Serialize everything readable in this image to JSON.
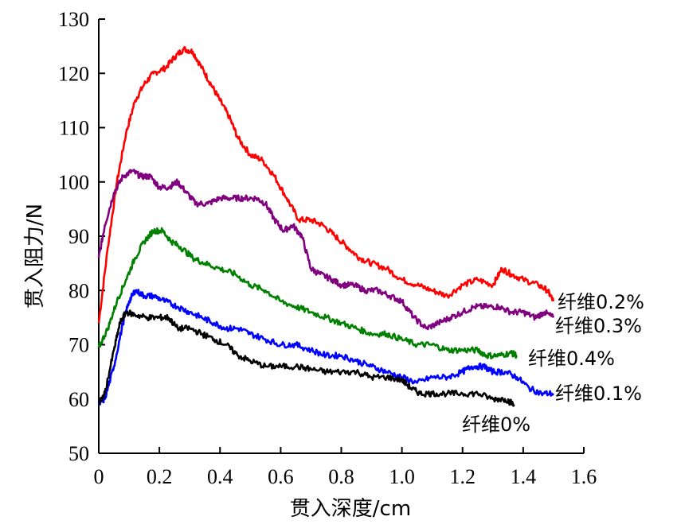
{
  "chart_data": {
    "type": "line",
    "xlabel": "贯入深度/cm",
    "ylabel": "贯入阻力/N",
    "xlim": [
      0,
      1.6
    ],
    "ylim": [
      50,
      130
    ],
    "xticks": [
      "0",
      "0.2",
      "0.4",
      "0.6",
      "0.8",
      "1.0",
      "1.2",
      "1.4",
      "1.6"
    ],
    "yticks": [
      "50",
      "60",
      "70",
      "80",
      "90",
      "100",
      "110",
      "120",
      "130"
    ],
    "grid": false,
    "legend": "inline labels at line ends",
    "series": [
      {
        "name": "纤维0.2%",
        "color": "#ff0000",
        "points": [
          [
            0,
            74
          ],
          [
            0.03,
            88
          ],
          [
            0.06,
            100
          ],
          [
            0.09,
            109
          ],
          [
            0.12,
            115
          ],
          [
            0.15,
            118
          ],
          [
            0.18,
            120
          ],
          [
            0.22,
            121
          ],
          [
            0.25,
            123
          ],
          [
            0.28,
            124.5
          ],
          [
            0.31,
            124
          ],
          [
            0.34,
            121
          ],
          [
            0.37,
            118
          ],
          [
            0.4,
            115
          ],
          [
            0.43,
            112
          ],
          [
            0.46,
            108
          ],
          [
            0.5,
            105
          ],
          [
            0.54,
            104
          ],
          [
            0.58,
            101
          ],
          [
            0.62,
            97
          ],
          [
            0.66,
            93
          ],
          [
            0.7,
            93
          ],
          [
            0.74,
            92
          ],
          [
            0.78,
            90
          ],
          [
            0.82,
            88
          ],
          [
            0.86,
            86
          ],
          [
            0.9,
            85
          ],
          [
            0.95,
            84
          ],
          [
            1.0,
            82
          ],
          [
            1.05,
            81
          ],
          [
            1.1,
            80
          ],
          [
            1.15,
            79
          ],
          [
            1.2,
            81
          ],
          [
            1.25,
            82
          ],
          [
            1.3,
            81
          ],
          [
            1.33,
            84
          ],
          [
            1.36,
            83
          ],
          [
            1.4,
            82
          ],
          [
            1.45,
            81
          ],
          [
            1.48,
            80
          ],
          [
            1.5,
            78
          ]
        ]
      },
      {
        "name": "纤维0.3%",
        "color": "#800080",
        "points": [
          [
            0,
            86
          ],
          [
            0.02,
            92
          ],
          [
            0.05,
            98
          ],
          [
            0.08,
            101
          ],
          [
            0.11,
            102
          ],
          [
            0.14,
            101
          ],
          [
            0.17,
            101
          ],
          [
            0.2,
            99
          ],
          [
            0.23,
            99
          ],
          [
            0.26,
            100
          ],
          [
            0.29,
            98
          ],
          [
            0.32,
            96
          ],
          [
            0.36,
            96
          ],
          [
            0.4,
            97
          ],
          [
            0.44,
            97
          ],
          [
            0.48,
            97
          ],
          [
            0.52,
            97
          ],
          [
            0.55,
            96
          ],
          [
            0.58,
            93
          ],
          [
            0.61,
            91
          ],
          [
            0.64,
            92
          ],
          [
            0.67,
            90
          ],
          [
            0.7,
            84
          ],
          [
            0.73,
            83
          ],
          [
            0.77,
            82
          ],
          [
            0.8,
            81
          ],
          [
            0.84,
            81
          ],
          [
            0.88,
            80
          ],
          [
            0.92,
            80
          ],
          [
            0.96,
            79
          ],
          [
            1.0,
            78
          ],
          [
            1.04,
            75
          ],
          [
            1.08,
            73
          ],
          [
            1.12,
            74
          ],
          [
            1.16,
            75
          ],
          [
            1.2,
            76
          ],
          [
            1.24,
            77
          ],
          [
            1.28,
            77
          ],
          [
            1.32,
            77
          ],
          [
            1.36,
            76
          ],
          [
            1.4,
            76
          ],
          [
            1.44,
            75
          ],
          [
            1.47,
            76
          ],
          [
            1.5,
            75
          ]
        ]
      },
      {
        "name": "纤维0.4%",
        "color": "#008000",
        "points": [
          [
            0,
            69.5
          ],
          [
            0.03,
            73
          ],
          [
            0.06,
            78
          ],
          [
            0.09,
            82
          ],
          [
            0.12,
            86
          ],
          [
            0.15,
            89
          ],
          [
            0.18,
            91
          ],
          [
            0.21,
            91
          ],
          [
            0.24,
            89
          ],
          [
            0.27,
            88
          ],
          [
            0.31,
            86
          ],
          [
            0.35,
            85
          ],
          [
            0.4,
            84
          ],
          [
            0.45,
            83
          ],
          [
            0.5,
            81
          ],
          [
            0.55,
            80
          ],
          [
            0.6,
            78
          ],
          [
            0.65,
            77
          ],
          [
            0.7,
            76
          ],
          [
            0.75,
            75
          ],
          [
            0.8,
            74
          ],
          [
            0.85,
            73
          ],
          [
            0.9,
            72
          ],
          [
            0.95,
            72
          ],
          [
            1.0,
            71
          ],
          [
            1.05,
            70
          ],
          [
            1.1,
            70
          ],
          [
            1.15,
            69
          ],
          [
            1.2,
            69
          ],
          [
            1.25,
            69
          ],
          [
            1.28,
            68
          ],
          [
            1.32,
            68
          ],
          [
            1.36,
            68.5
          ],
          [
            1.38,
            68
          ]
        ]
      },
      {
        "name": "纤维0.1%",
        "color": "#0000ff",
        "points": [
          [
            0,
            59
          ],
          [
            0.02,
            60
          ],
          [
            0.05,
            66
          ],
          [
            0.08,
            74
          ],
          [
            0.1,
            78
          ],
          [
            0.12,
            80
          ],
          [
            0.15,
            79
          ],
          [
            0.18,
            79
          ],
          [
            0.22,
            78
          ],
          [
            0.26,
            77
          ],
          [
            0.3,
            76
          ],
          [
            0.34,
            75
          ],
          [
            0.38,
            74
          ],
          [
            0.42,
            73
          ],
          [
            0.46,
            73
          ],
          [
            0.5,
            72
          ],
          [
            0.55,
            71
          ],
          [
            0.6,
            70
          ],
          [
            0.65,
            70
          ],
          [
            0.7,
            69
          ],
          [
            0.75,
            68
          ],
          [
            0.8,
            68
          ],
          [
            0.85,
            67
          ],
          [
            0.9,
            66
          ],
          [
            0.95,
            65
          ],
          [
            1.0,
            64
          ],
          [
            1.05,
            63
          ],
          [
            1.1,
            64
          ],
          [
            1.15,
            64
          ],
          [
            1.2,
            65
          ],
          [
            1.23,
            66
          ],
          [
            1.27,
            66
          ],
          [
            1.3,
            65
          ],
          [
            1.34,
            65
          ],
          [
            1.38,
            64
          ],
          [
            1.42,
            62
          ],
          [
            1.46,
            61
          ],
          [
            1.5,
            61
          ]
        ]
      },
      {
        "name": "纤维0%",
        "color": "#000000",
        "points": [
          [
            0,
            59
          ],
          [
            0.02,
            61
          ],
          [
            0.05,
            69
          ],
          [
            0.07,
            74
          ],
          [
            0.09,
            76
          ],
          [
            0.12,
            75.5
          ],
          [
            0.16,
            75
          ],
          [
            0.2,
            75
          ],
          [
            0.23,
            75
          ],
          [
            0.26,
            73
          ],
          [
            0.3,
            73
          ],
          [
            0.34,
            72
          ],
          [
            0.38,
            71
          ],
          [
            0.42,
            70
          ],
          [
            0.46,
            68
          ],
          [
            0.5,
            67
          ],
          [
            0.55,
            66
          ],
          [
            0.6,
            66
          ],
          [
            0.65,
            66
          ],
          [
            0.7,
            65.5
          ],
          [
            0.75,
            65
          ],
          [
            0.8,
            65
          ],
          [
            0.85,
            65
          ],
          [
            0.9,
            64
          ],
          [
            0.95,
            64
          ],
          [
            1.0,
            63.5
          ],
          [
            1.03,
            62
          ],
          [
            1.06,
            61
          ],
          [
            1.1,
            61
          ],
          [
            1.15,
            61
          ],
          [
            1.2,
            61
          ],
          [
            1.25,
            61
          ],
          [
            1.3,
            60
          ],
          [
            1.34,
            60
          ],
          [
            1.37,
            59
          ]
        ]
      }
    ]
  }
}
